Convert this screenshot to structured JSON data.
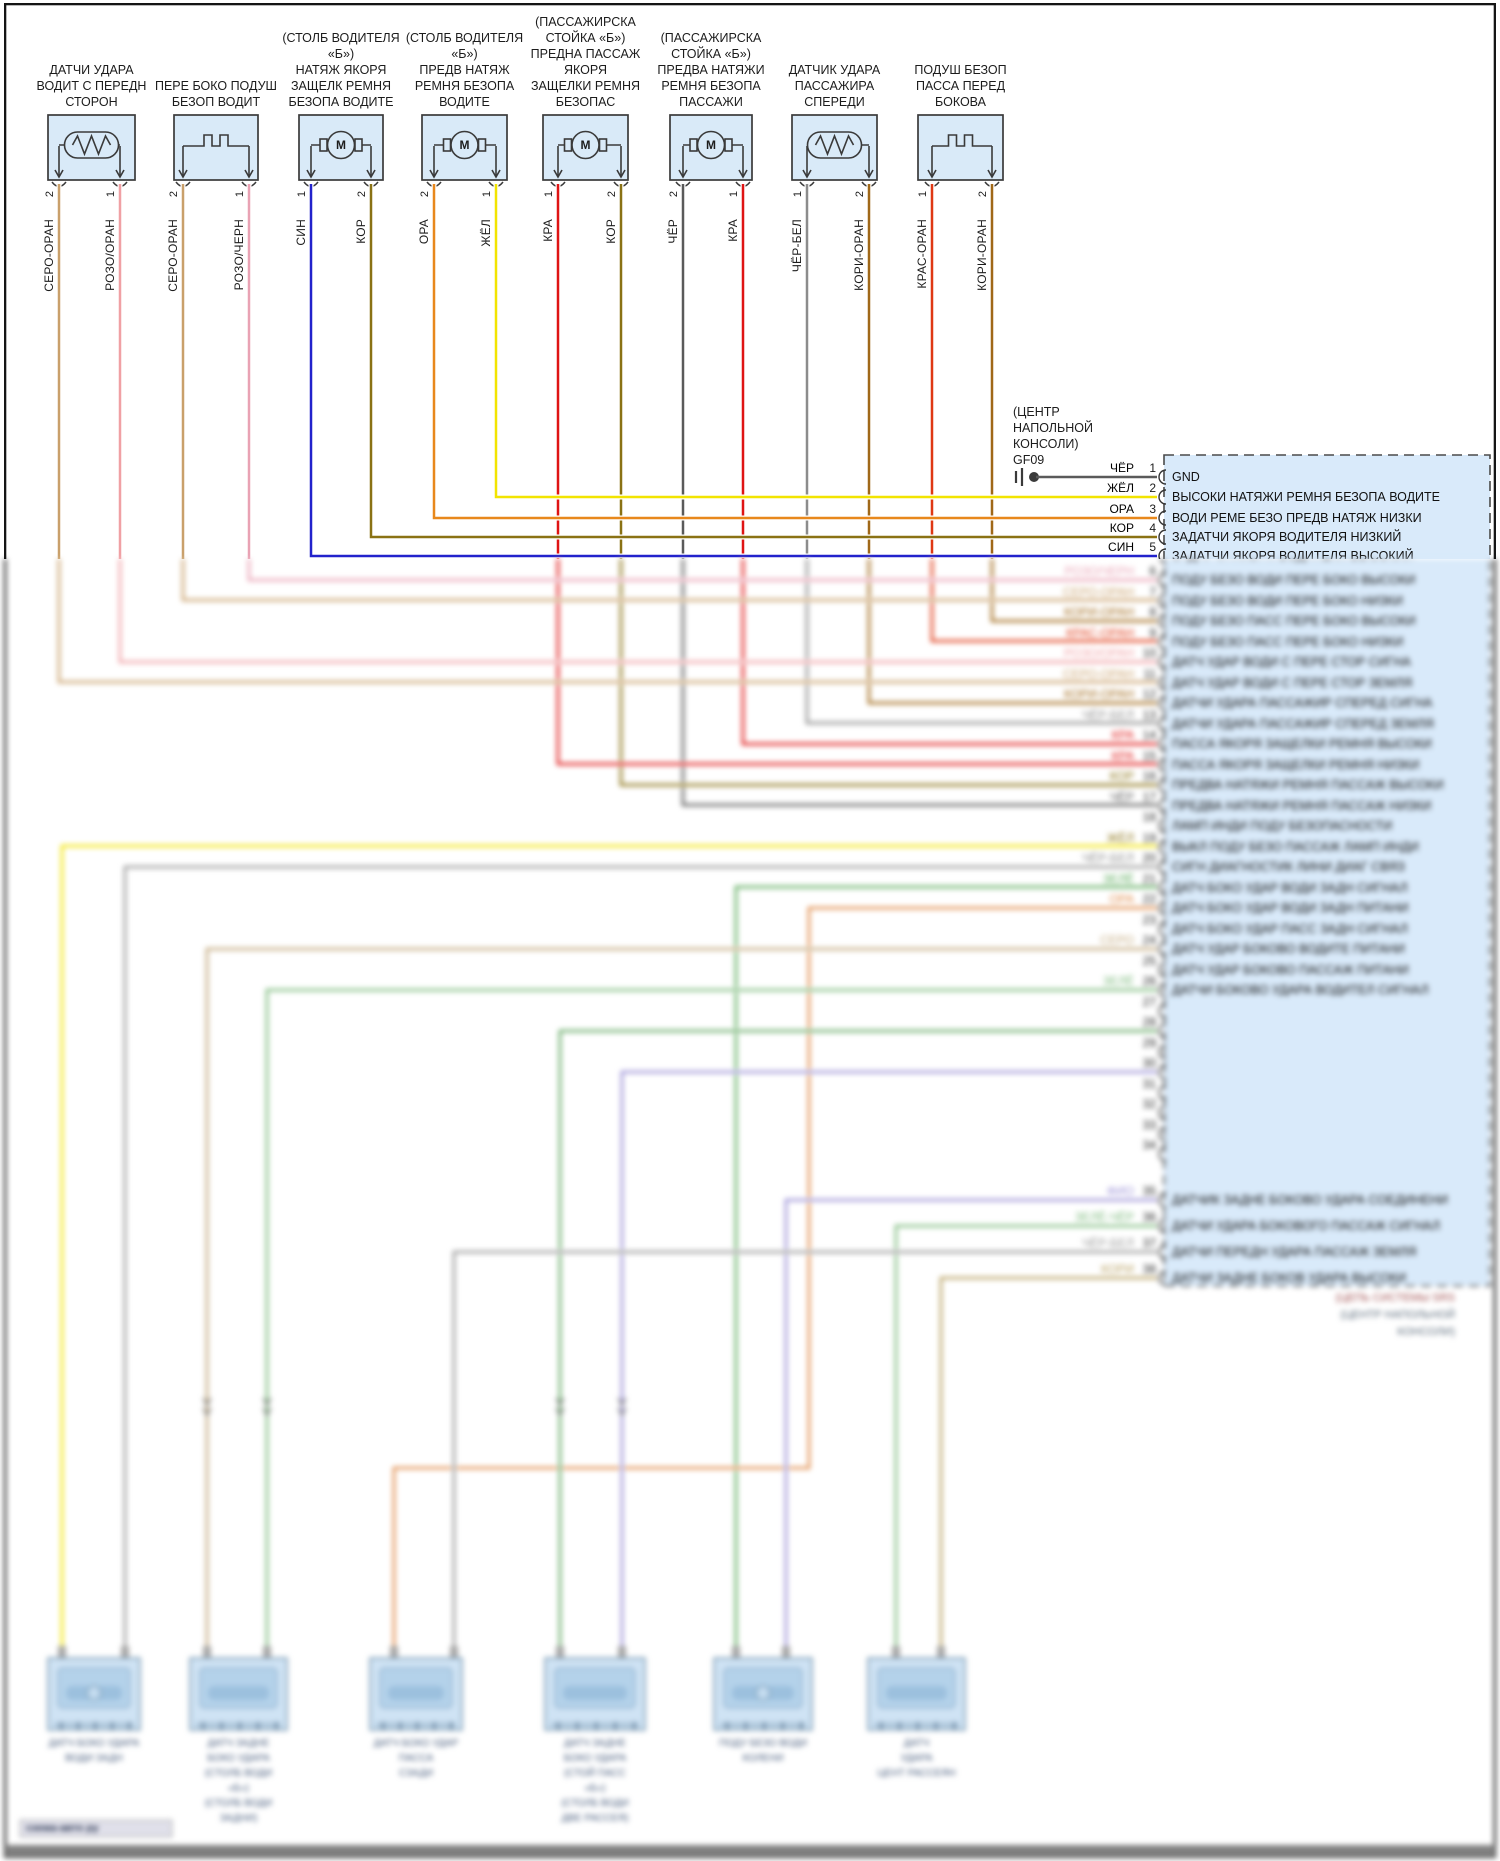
{
  "motor_letter": "M",
  "colors": {
    "box_fill": "#d9eaf8",
    "box_stroke": "#3a3a3a",
    "panel_fill": "#d9eafa",
    "panel_stroke": "#4a4a4a",
    "page_border": "#151515",
    "wire": {
      "SERO_ORAN": "#c9a06b",
      "ROZO_ORAN": "#f0a0a4",
      "ROZO_CHERN": "#e9a2b4",
      "SIN": "#2222cc",
      "KOR": "#8a7214",
      "ORA": "#e8881c",
      "ZHEL": "#f2e400",
      "KRA": "#df1414",
      "CHER": "#5a5a5a",
      "CHER_BEL": "#8c8c8c",
      "KORI_ORAN": "#a06818",
      "KRAS_ORAN": "#df3814",
      "YELLOW2": "#f2e400",
      "GRAY2": "#979797",
      "GREEN": "#5aaa5a",
      "GREEN2": "#7cba7c",
      "GREEN3": "#63a863",
      "LAVENDER": "#998fd6",
      "ORANGE2": "#e08a48",
      "TAN2": "#c2a87c",
      "TAN3": "#b8a060"
    }
  },
  "components": [
    {
      "label_lines": [
        "ДАТЧИ УДАРА",
        "ВОДИТ С ПЕРЕДН",
        "СТОРОН"
      ],
      "symbol": "resistor",
      "pins": [
        {
          "num": "2",
          "wire": "СЕРО-ОРАН",
          "color": "SERO_ORAN"
        },
        {
          "num": "1",
          "wire": "РОЗО/ОРАН",
          "color": "ROZO_ORAN"
        }
      ]
    },
    {
      "label_lines": [
        "ПЕРЕ БОКО ПОДУШ",
        "БЕЗОП ВОДИТ"
      ],
      "symbol": "squib",
      "pins": [
        {
          "num": "2",
          "wire": "СЕРО-ОРАН",
          "color": "SERO_ORAN"
        },
        {
          "num": "1",
          "wire": "РОЗО/ЧЕРН",
          "color": "ROZO_CHERN"
        }
      ]
    },
    {
      "label_lines": [
        "(СТОЛБ ВОДИТЕЛЯ",
        "«Б»)",
        "НАТЯЖ ЯКОРЯ",
        "ЗАЩЕЛК РЕМНЯ",
        "БЕЗОПА ВОДИТЕ"
      ],
      "symbol": "motor",
      "pins": [
        {
          "num": "1",
          "wire": "СИН",
          "color": "SIN"
        },
        {
          "num": "2",
          "wire": "КОР",
          "color": "KOR"
        }
      ]
    },
    {
      "label_lines": [
        "(СТОЛБ ВОДИТЕЛЯ",
        "«Б»)",
        "ПРЕДВ НАТЯЖ",
        "РЕМНЯ БЕЗОПА",
        "ВОДИТЕ"
      ],
      "symbol": "motor",
      "pins": [
        {
          "num": "2",
          "wire": "ОРА",
          "color": "ORA"
        },
        {
          "num": "1",
          "wire": "ЖЁЛ",
          "color": "ZHEL"
        }
      ]
    },
    {
      "label_lines": [
        "(ПАССАЖИРСКА",
        "СТОЙКА «Б»)",
        "ПРЕДНА ПАССАЖ",
        "ЯКОРЯ",
        "ЗАЩЕЛКИ РЕМНЯ",
        "БЕЗОПАС"
      ],
      "symbol": "motor",
      "pins": [
        {
          "num": "1",
          "wire": "КРА",
          "color": "KRA"
        },
        {
          "num": "2",
          "wire": "КОР",
          "color": "KOR"
        }
      ]
    },
    {
      "label_lines": [
        "(ПАССАЖИРСКА",
        "СТОЙКА «Б»)",
        "ПРЕДВА НАТЯЖИ",
        "РЕМНЯ БЕЗОПА",
        "ПАССАЖИ"
      ],
      "symbol": "motor",
      "pins": [
        {
          "num": "2",
          "wire": "ЧЁР",
          "color": "CHER"
        },
        {
          "num": "1",
          "wire": "КРА",
          "color": "KRA"
        }
      ]
    },
    {
      "label_lines": [
        "ДАТЧИК УДАРА",
        "ПАССАЖИРА",
        "СПЕРЕДИ"
      ],
      "symbol": "resistor",
      "pins": [
        {
          "num": "1",
          "wire": "ЧЁР-БЕЛ",
          "color": "CHER_BEL"
        },
        {
          "num": "2",
          "wire": "КОРИ-ОРАН",
          "color": "KORI_ORAN"
        }
      ]
    },
    {
      "label_lines": [
        "ПОДУШ БЕЗОП",
        "ПАССА ПЕРЕД",
        "БОКОВА"
      ],
      "symbol": "squib",
      "pins": [
        {
          "num": "1",
          "wire": "КРАС-ОРАН",
          "color": "KRAS_ORAN"
        },
        {
          "num": "2",
          "wire": "КОРИ-ОРАН",
          "color": "KORI_ORAN"
        }
      ]
    }
  ],
  "gf09": {
    "title_lines": [
      "(ЦЕНТР",
      "НАПОЛЬНОЙ",
      "КОНСОЛИ)",
      "GF09"
    ],
    "rows": [
      {
        "wire": "ЧЁР",
        "pin": "1",
        "desc": "GND"
      },
      {
        "wire": "ЖЁЛ",
        "pin": "2",
        "desc": "ВЫСОКИ НАТЯЖИ РЕМНЯ БЕЗОПА ВОДИТЕ"
      },
      {
        "wire": "ОРА",
        "pin": "3",
        "desc": "ВОДИ РЕМЕ БЕЗО ПРЕДВ НАТЯЖ НИЗКИ"
      },
      {
        "wire": "КОР",
        "pin": "4",
        "desc": "ЗАДАТЧИ ЯКОРЯ ВОДИТЕЛЯ НИЗКИЙ"
      },
      {
        "wire": "СИН",
        "pin": "5",
        "desc": "ЗАДАТЧИ ЯКОРЯ ВОДИТЕЛЯ ВЫСОКИЙ"
      }
    ]
  },
  "blurred_panel": {
    "rows": [
      {
        "pin": "6",
        "wire": "РОЗО/ЧЕРН",
        "color": "ROZO_CHERN",
        "desc": "ПОДУ БЕЗО ВОДИ ПЕРЕ БОКО ВЫСОКИ"
      },
      {
        "pin": "7",
        "wire": "СЕРО-ОРАН",
        "color": "SERO_ORAN",
        "desc": "ПОДУ БЕЗО ВОДИ ПЕРЕ БОКО НИЗКИ"
      },
      {
        "pin": "8",
        "wire": "КОРИ-ОРАН",
        "color": "KORI_ORAN",
        "desc": "ПОДУ БЕЗО ПАСС ПЕРЕ БОКО ВЫСОКИ"
      },
      {
        "pin": "9",
        "wire": "КРАС-ОРАН",
        "color": "KRAS_ORAN",
        "desc": "ПОДУ БЕЗО ПАСС ПЕРЕ БОКО НИЗКИ"
      },
      {
        "pin": "10",
        "wire": "РОЗО/ОРАН",
        "color": "ROZO_ORAN",
        "desc": "ДАТЧ УДАР ВОДИ С ПЕРЕ СТОР СИГНА"
      },
      {
        "pin": "11",
        "wire": "СЕРО-ОРАН",
        "color": "SERO_ORAN",
        "desc": "ДАТЧ УДАР ВОДИ С ПЕРЕ СТОР ЗЕМЛЯ"
      },
      {
        "pin": "12",
        "wire": "КОРИ-ОРАН",
        "color": "KORI_ORAN",
        "desc": "ДАТЧИ УДАРА ПАССАЖИР СПЕРЕД СИГНА"
      },
      {
        "pin": "13",
        "wire": "ЧЁР-БЕЛ",
        "color": "CHER_BEL",
        "desc": "ДАТЧИ УДАРА ПАССАЖИР СПЕРЕД ЗЕМЛЯ"
      },
      {
        "pin": "14",
        "wire": "КРА",
        "color": "KRA",
        "desc": "ПАССА ЯКОРЯ ЗАЩЕЛКИ РЕМНЯ ВЫСОКИ"
      },
      {
        "pin": "15",
        "wire": "КРА",
        "color": "KRA",
        "desc": "ПАССА ЯКОРЯ ЗАЩЕЛКИ РЕМНЯ НИЗКИ"
      },
      {
        "pin": "16",
        "wire": "КОР",
        "color": "KOR",
        "desc": "ПРЕДВА НАТЯЖИ РЕМНЯ ПАССАЖ ВЫСОКИ"
      },
      {
        "pin": "17",
        "wire": "ЧЁР",
        "color": "CHER",
        "desc": "ПРЕДВА НАТЯЖИ РЕМНЯ ПАССАЖ НИЗКИ"
      },
      {
        "pin": "18",
        "wire": "",
        "color": "CHER",
        "desc": "ЛАМП ИНДИ ПОДУ БЕЗОПАСНОСТИ"
      },
      {
        "pin": "19",
        "wire": "ЖЁЛ",
        "color": "KOR",
        "desc": "ВЫКЛ ПОДУ БЕЗО ПАССАЖ ЛАМП ИНДИ"
      },
      {
        "pin": "20",
        "wire": "ЧЁР-БЕЛ",
        "color": "CHER_BEL",
        "desc": "СИГН ДИАГНОСТИК ЛИНИ ДИАГ СВЯЗ"
      },
      {
        "pin": "21",
        "wire": "ЗЕЛЁ",
        "color": "GREEN",
        "desc": "ДАТЧ БОКО УДАР ВОДИ ЗАДН СИГНАЛ"
      },
      {
        "pin": "22",
        "wire": "ОРА",
        "color": "ORANGE2",
        "desc": "ДАТЧ БОКО УДАР ВОДИ ЗАДН ПИТАНИ"
      },
      {
        "pin": "23",
        "wire": "",
        "color": "CHER",
        "desc": "ДАТЧ БОКО УДАР ПАСС ЗАДН СИГНАЛ"
      },
      {
        "pin": "24",
        "wire": "СЕРО",
        "color": "TAN2",
        "desc": "ДАТЧ УДАР БОКОВО ВОДИТЕ ПИТАНИ"
      },
      {
        "pin": "25",
        "wire": "",
        "color": "CHER",
        "desc": "ДАТЧ УДАР БОКОВО ПАССАЖ ПИТАНИ"
      },
      {
        "pin": "26",
        "wire": "ЗЕЛЁ",
        "color": "GREEN2",
        "desc": "ДАТЧИ БОКОВО УДАРА ВОДИТЕЛ СИГНАЛ"
      }
    ],
    "pin_only": [
      "27",
      "28",
      "29",
      "30",
      "31",
      "32",
      "33",
      "34"
    ],
    "bottom_rows": [
      {
        "pin": "35",
        "wire": "ФИО",
        "color": "LAVENDER",
        "desc": "ДАТЧИК ЗАДНЕ БОКОВО УДАРА СОЕДИНЕНИ"
      },
      {
        "pin": "36",
        "wire": "ЗЕЛЁ-ЧЁР",
        "color": "GREEN2",
        "desc": "ДАТЧИ УДАРА БОКОВОГО ПАССАЖ СИГНАЛ"
      },
      {
        "pin": "37",
        "wire": "ЧЁР-БЕЛ",
        "color": "GRAY2",
        "desc": "ДАТЧИ ПЕРЕДН УДАРА ПАССАЖ ЗЕМЛЯ"
      },
      {
        "pin": "38",
        "wire": "КОРИ",
        "color": "TAN3",
        "desc": "ДАТЧИ ЗАДНЕ БОКОВ УДАРА ВЫСОКИ"
      }
    ],
    "caption_lines": [
      "(ЦЕПЬ СИСТЕМЫ SRS",
      "(ЦЕНТР НАПОЛЬНОЙ",
      "КОНСОЛИ)"
    ]
  },
  "connectors": [
    {
      "label_lines": [
        "ДАТЧ БОКО УДАРА",
        "ВОДИ ЗАДН"
      ]
    },
    {
      "label_lines": [
        "ДАТЧ ЗАДНЕ",
        "БОКО УДАРА",
        "(СТОЛБ ВОДИ",
        "«Б»)",
        "(СТОЛБ ВОДИ",
        "ЗАДНИ)"
      ]
    },
    {
      "label_lines": [
        "ДАТЧ БОКО УДАР",
        "ПАССА",
        "СЗАДИ"
      ]
    },
    {
      "label_lines": [
        "ДАТЧ ЗАДНЕ",
        "БОКО УДАРА",
        "(СТОЙ ПАСС",
        "«Б»)",
        "(СТОЛБ ВОДИ",
        "ДВЕ РАССЕЯ)"
      ]
    },
    {
      "label_lines": [
        "ПОДУ БЕЗО ВОДИ",
        "КОЛЕНИ"
      ]
    },
    {
      "label_lines": [
        "ДАТЧ",
        "УДАРА",
        "ЦЕНТ РАССЕЯН"
      ]
    }
  ],
  "watermark": "схема-авто ру"
}
